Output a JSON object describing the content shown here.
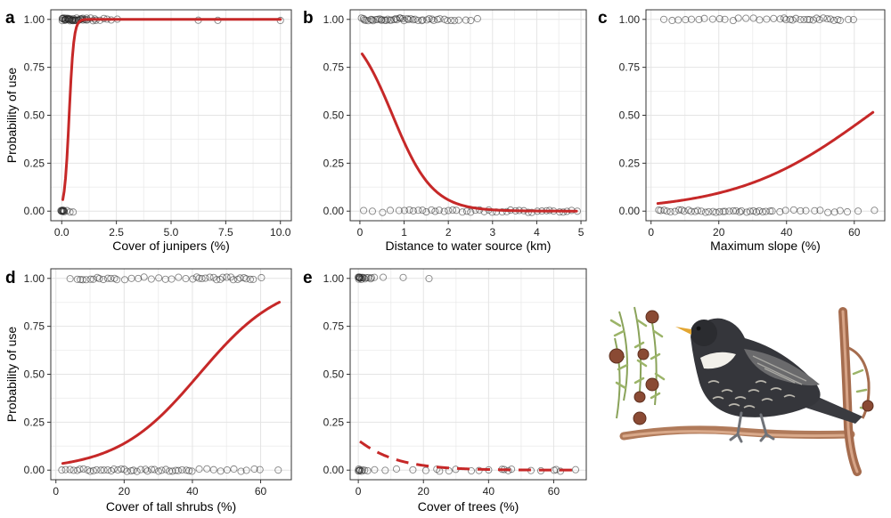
{
  "figure": {
    "illustration": "ring ouzel perched on a juniper branch with berries"
  },
  "chart_data": [
    {
      "panel": "a",
      "type": "scatter",
      "xlabel": "Cover of junipers (%)",
      "ylabel": "Probability of use",
      "xlim": [
        -0.5,
        10.5
      ],
      "ylim": [
        -0.05,
        1.05
      ],
      "xticks": [
        0,
        2.5,
        5,
        7.5,
        10
      ],
      "xtick_labels": [
        "0.0",
        "2.5",
        "5.0",
        "7.5",
        "10.0"
      ],
      "yticks": [
        0,
        0.25,
        0.5,
        0.75,
        1
      ],
      "ytick_labels": [
        "0.00",
        "0.25",
        "0.50",
        "0.75",
        "1.00"
      ],
      "points_used": [
        0,
        0.02,
        0.05,
        0.08,
        0.1,
        0.12,
        0.15,
        0.18,
        0.2,
        0.22,
        0.25,
        0.28,
        0.3,
        0.33,
        0.35,
        0.38,
        0.4,
        0.43,
        0.45,
        0.48,
        0.5,
        0.53,
        0.56,
        0.6,
        0.63,
        0.66,
        0.7,
        0.73,
        0.77,
        0.8,
        0.84,
        0.88,
        0.92,
        0.96,
        1.0,
        1.05,
        1.1,
        1.15,
        1.2,
        1.3,
        1.4,
        1.5,
        1.6,
        1.75,
        1.9,
        2.05,
        2.3,
        2.55,
        6.2,
        7.1,
        10.0
      ],
      "points_unused": [
        0,
        0,
        0,
        0.01,
        0.02,
        0.03,
        0.05,
        0.07,
        0.1,
        0.12,
        0.2,
        0.35,
        0.55
      ],
      "curve": {
        "style": "solid",
        "x_start": 0.05,
        "x_end": 10,
        "y_at_x0": 0.06,
        "slope": 9.5
      },
      "curve_model": "logistic"
    },
    {
      "panel": "b",
      "type": "scatter",
      "xlabel": "Distance to water source (km)",
      "ylabel": "",
      "xlim": [
        -0.22,
        5.12
      ],
      "ylim": [
        -0.05,
        1.05
      ],
      "xticks": [
        0,
        1,
        2,
        3,
        4,
        5
      ],
      "xtick_labels": [
        "0",
        "1",
        "2",
        "3",
        "4",
        "5"
      ],
      "yticks": [
        0,
        0.25,
        0.5,
        0.75,
        1
      ],
      "ytick_labels": [
        "0.00",
        "0.25",
        "0.50",
        "0.75",
        "1.00"
      ],
      "points_used": [
        0.02,
        0.08,
        0.12,
        0.15,
        0.2,
        0.23,
        0.28,
        0.32,
        0.36,
        0.4,
        0.44,
        0.48,
        0.52,
        0.56,
        0.6,
        0.64,
        0.68,
        0.72,
        0.76,
        0.8,
        0.84,
        0.88,
        0.92,
        0.96,
        1.0,
        1.05,
        1.1,
        1.15,
        1.2,
        1.26,
        1.32,
        1.38,
        1.44,
        1.5,
        1.56,
        1.62,
        1.68,
        1.75,
        1.82,
        1.9,
        1.98,
        2.06,
        2.15,
        2.25,
        2.38,
        2.5,
        2.65
      ],
      "points_unused": [
        0.1,
        0.3,
        0.5,
        0.7,
        0.9,
        1.0,
        1.1,
        1.2,
        1.3,
        1.4,
        1.5,
        1.6,
        1.7,
        1.8,
        1.9,
        2.0,
        2.1,
        2.2,
        2.3,
        2.4,
        2.5,
        2.6,
        2.7,
        2.8,
        2.9,
        3.0,
        3.1,
        3.2,
        3.3,
        3.4,
        3.5,
        3.6,
        3.7,
        3.8,
        3.9,
        4.0,
        4.1,
        4.2,
        4.3,
        4.4,
        4.5,
        4.6,
        4.7,
        4.8,
        4.9
      ],
      "curve": {
        "style": "solid",
        "x_start": 0.05,
        "x_end": 4.9,
        "y_at_x0": 0.82,
        "slope": -2.2
      },
      "curve_model": "logistic"
    },
    {
      "panel": "c",
      "type": "scatter",
      "xlabel": "Maximum slope (%)",
      "ylabel": "",
      "xlim": [
        -1.5,
        69
      ],
      "ylim": [
        -0.05,
        1.05
      ],
      "xticks": [
        0,
        20,
        40,
        60
      ],
      "xtick_labels": [
        "0",
        "20",
        "40",
        "60"
      ],
      "yticks": [
        0,
        0.25,
        0.5,
        0.75,
        1
      ],
      "ytick_labels": [
        "0.00",
        "0.25",
        "0.50",
        "0.75",
        "1.00"
      ],
      "points_used": [
        4,
        6,
        8,
        10,
        12,
        14,
        16,
        18,
        20,
        22,
        24,
        26,
        28,
        30,
        32,
        34,
        36,
        38,
        39,
        40,
        41,
        42,
        43,
        44,
        45,
        46,
        47,
        48,
        49,
        50,
        51,
        52,
        53,
        54,
        55,
        56,
        58,
        60
      ],
      "points_unused": [
        2,
        3,
        4,
        5,
        6,
        7,
        8,
        9,
        10,
        11,
        12,
        13,
        14,
        15,
        16,
        17,
        18,
        19,
        20,
        21,
        22,
        23,
        24,
        25,
        26,
        27,
        28,
        29,
        30,
        31,
        32,
        33,
        34,
        35,
        36,
        38,
        40,
        42,
        44,
        46,
        48,
        50,
        52,
        54,
        56,
        58,
        61,
        66
      ],
      "curve": {
        "style": "solid",
        "x_start": 2,
        "x_end": 65.5,
        "y_at_x0": 0.04,
        "slope": 0.051
      },
      "curve_model": "logistic"
    },
    {
      "panel": "d",
      "type": "scatter",
      "xlabel": "Cover of tall shrubs (%)",
      "ylabel": "Probability of use",
      "xlim": [
        -1.5,
        69
      ],
      "ylim": [
        -0.05,
        1.05
      ],
      "xticks": [
        0,
        20,
        40,
        60
      ],
      "xtick_labels": [
        "0",
        "20",
        "40",
        "60"
      ],
      "yticks": [
        0,
        0.25,
        0.5,
        0.75,
        1
      ],
      "ytick_labels": [
        "0.00",
        "0.25",
        "0.50",
        "0.75",
        "1.00"
      ],
      "points_used": [
        4,
        6,
        7,
        8,
        9,
        10,
        11,
        12,
        13,
        14,
        15,
        16,
        17,
        18,
        20,
        22,
        24,
        26,
        28,
        30,
        32,
        34,
        36,
        38,
        40,
        41,
        42,
        43,
        44,
        45,
        46,
        47,
        48,
        49,
        50,
        51,
        52,
        53,
        54,
        55,
        56,
        57,
        58,
        60
      ],
      "points_unused": [
        2,
        3,
        4,
        5,
        6,
        7,
        8,
        9,
        10,
        11,
        12,
        13,
        14,
        15,
        16,
        17,
        18,
        19,
        20,
        21,
        22,
        23,
        24,
        25,
        26,
        27,
        28,
        29,
        30,
        31,
        32,
        33,
        34,
        35,
        36,
        37,
        38,
        39,
        40,
        42,
        44,
        46,
        48,
        50,
        52,
        54,
        56,
        58,
        60,
        65
      ],
      "curve": {
        "style": "solid",
        "x_start": 2,
        "x_end": 65.5,
        "y_at_x0": 0.035,
        "slope": 0.083
      },
      "curve_model": "logistic"
    },
    {
      "panel": "e",
      "type": "scatter",
      "xlabel": "Cover of trees (%)",
      "ylabel": "",
      "xlim": [
        -2.5,
        70
      ],
      "ylim": [
        -0.05,
        1.05
      ],
      "xticks": [
        0,
        20,
        40,
        60
      ],
      "xtick_labels": [
        "0",
        "20",
        "40",
        "60"
      ],
      "yticks": [
        0,
        0.25,
        0.5,
        0.75,
        1
      ],
      "ytick_labels": [
        "0.00",
        "0.25",
        "0.50",
        "0.75",
        "1.00"
      ],
      "points_used": [
        0,
        0,
        0,
        0.2,
        0.4,
        0.6,
        0.8,
        1.0,
        1.2,
        1.5,
        1.8,
        2.2,
        2.6,
        3.0,
        3.5,
        4.2,
        5.0,
        7.5,
        14,
        22
      ],
      "points_unused": [
        0,
        0,
        0,
        0.3,
        0.6,
        1.0,
        1.5,
        2.0,
        3.0,
        5.0,
        8.0,
        12,
        17,
        21,
        24,
        25,
        28,
        30,
        35,
        37,
        40,
        44,
        45,
        46,
        47,
        53,
        56,
        60,
        61,
        62,
        67
      ],
      "curve": {
        "style": "dashed",
        "x_start": 0.5,
        "x_end": 66,
        "y_at_x0": 0.15,
        "slope": -0.1
      },
      "curve_model": "logistic"
    }
  ]
}
